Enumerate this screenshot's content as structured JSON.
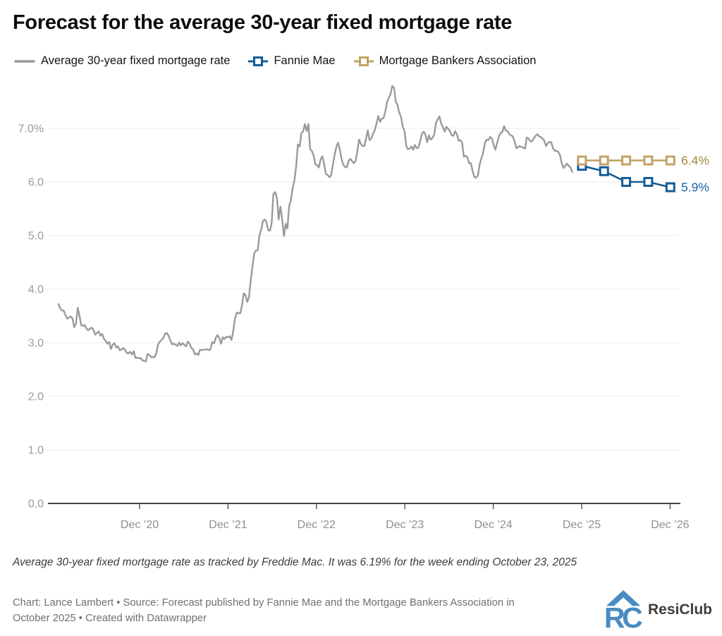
{
  "title": "Forecast for the average 30-year fixed mortgage rate",
  "legend": {
    "items": [
      {
        "label": "Average 30-year fixed mortgage rate",
        "color": "#9a9a9a",
        "swatch": "line"
      },
      {
        "label": "Fannie Mae",
        "color": "#155c96",
        "swatch": "square"
      },
      {
        "label": "Mortgage Bankers Association",
        "color": "#c3a265",
        "swatch": "square"
      }
    ]
  },
  "chart_data": {
    "type": "line",
    "title": "Forecast for the average 30-year fixed mortgage rate",
    "xlabel": "",
    "ylabel": "",
    "ylim": [
      0,
      7.9
    ],
    "grid": true,
    "y_ticks": [
      {
        "value": 7,
        "label": "7.0%"
      },
      {
        "value": 6,
        "label": "6.0"
      },
      {
        "value": 5,
        "label": "5.0"
      },
      {
        "value": 4,
        "label": "4.0"
      },
      {
        "value": 3,
        "label": "3.0"
      },
      {
        "value": 2,
        "label": "2.0"
      },
      {
        "value": 1,
        "label": "1.0"
      },
      {
        "value": 0,
        "label": "0.0"
      }
    ],
    "x_ticks": [
      {
        "t": 2020.917,
        "label": "Dec ’20"
      },
      {
        "t": 2021.917,
        "label": "Dec ’21"
      },
      {
        "t": 2022.917,
        "label": "Dec ’22"
      },
      {
        "t": 2023.917,
        "label": "Dec ’23"
      },
      {
        "t": 2024.917,
        "label": "Dec ’24"
      },
      {
        "t": 2025.917,
        "label": "Dec ’25"
      },
      {
        "t": 2026.917,
        "label": "Dec ’26"
      }
    ],
    "series": [
      {
        "name": "Average 30-year fixed mortgage rate",
        "color": "#9a9a9a",
        "x_start": 2020.0,
        "x_end": 2025.81,
        "values": [
          3.72,
          3.64,
          3.6,
          3.6,
          3.51,
          3.45,
          3.47,
          3.49,
          3.45,
          3.29,
          3.36,
          3.65,
          3.5,
          3.33,
          3.31,
          3.33,
          3.26,
          3.23,
          3.26,
          3.28,
          3.24,
          3.15,
          3.18,
          3.21,
          3.13,
          3.16,
          3.07,
          3.03,
          2.98,
          3.01,
          2.88,
          2.96,
          2.99,
          2.91,
          2.93,
          2.86,
          2.87,
          2.9,
          2.87,
          2.81,
          2.8,
          2.83,
          2.78,
          2.84,
          2.72,
          2.72,
          2.71,
          2.71,
          2.67,
          2.66,
          2.65,
          2.79,
          2.77,
          2.73,
          2.73,
          2.73,
          2.81,
          2.97,
          3.02,
          3.05,
          3.09,
          3.17,
          3.18,
          3.13,
          3.04,
          2.97,
          2.98,
          2.96,
          2.94,
          3.0,
          2.95,
          2.99,
          2.96,
          2.93,
          3.02,
          2.98,
          2.9,
          2.88,
          2.78,
          2.8,
          2.77,
          2.87,
          2.86,
          2.87,
          2.87,
          2.88,
          2.86,
          2.88,
          3.01,
          2.99,
          3.09,
          3.14,
          3.09,
          2.98,
          3.1,
          3.07,
          3.11,
          3.1,
          3.12,
          3.05,
          3.22,
          3.45,
          3.56,
          3.55,
          3.55,
          3.69,
          3.92,
          3.89,
          3.76,
          3.85,
          4.16,
          4.42,
          4.67,
          4.72,
          4.72,
          5.0,
          5.11,
          5.27,
          5.3,
          5.25,
          5.1,
          5.09,
          5.23,
          5.78,
          5.81,
          5.7,
          5.3,
          5.54,
          5.3,
          4.99,
          5.22,
          5.13,
          5.55,
          5.66,
          5.89,
          6.02,
          6.29,
          6.7,
          6.66,
          6.92,
          6.94,
          7.08,
          6.95,
          7.08,
          6.61,
          6.58,
          6.49,
          6.33,
          6.31,
          6.27,
          6.42,
          6.48,
          6.33,
          6.15,
          6.13,
          6.09,
          6.12,
          6.32,
          6.5,
          6.65,
          6.73,
          6.6,
          6.42,
          6.32,
          6.28,
          6.27,
          6.39,
          6.43,
          6.39,
          6.35,
          6.39,
          6.57,
          6.79,
          6.71,
          6.67,
          6.67,
          6.81,
          6.96,
          6.78,
          6.81,
          6.9,
          6.96,
          7.09,
          7.23,
          7.12,
          7.18,
          7.19,
          7.31,
          7.49,
          7.57,
          7.63,
          7.79,
          7.76,
          7.5,
          7.44,
          7.29,
          7.22,
          7.03,
          6.95,
          6.67,
          6.61,
          6.62,
          6.66,
          6.6,
          6.69,
          6.63,
          6.64,
          6.77,
          6.9,
          6.94,
          6.88,
          6.74,
          6.87,
          6.79,
          6.82,
          6.88,
          7.1,
          7.17,
          7.22,
          7.09,
          7.02,
          6.94,
          7.03,
          6.99,
          6.95,
          6.87,
          6.86,
          6.95,
          6.89,
          6.77,
          6.78,
          6.73,
          6.47,
          6.49,
          6.46,
          6.35,
          6.35,
          6.2,
          6.09,
          6.08,
          6.12,
          6.32,
          6.44,
          6.54,
          6.72,
          6.79,
          6.78,
          6.84,
          6.81,
          6.69,
          6.6,
          6.72,
          6.85,
          6.91,
          6.93,
          7.04,
          6.96,
          6.95,
          6.89,
          6.87,
          6.85,
          6.76,
          6.63,
          6.65,
          6.67,
          6.65,
          6.64,
          6.62,
          6.83,
          6.81,
          6.76,
          6.76,
          6.81,
          6.86,
          6.89,
          6.85,
          6.84,
          6.81,
          6.77,
          6.67,
          6.72,
          6.75,
          6.74,
          6.63,
          6.58,
          6.58,
          6.56,
          6.5,
          6.35,
          6.26,
          6.3,
          6.34,
          6.3,
          6.27,
          6.19
        ]
      },
      {
        "name": "Fannie Mae",
        "color": "#155c96",
        "x": [
          2025.92,
          2026.17,
          2026.42,
          2026.67,
          2026.92
        ],
        "values": [
          6.3,
          6.2,
          6.0,
          6.0,
          5.9
        ],
        "end_label": "5.9%",
        "end_label_color": "#2165a5"
      },
      {
        "name": "Mortgage Bankers Association",
        "color": "#c3a265",
        "x": [
          2025.92,
          2026.17,
          2026.42,
          2026.67,
          2026.92
        ],
        "values": [
          6.4,
          6.4,
          6.4,
          6.4,
          6.4
        ],
        "end_label": "6.4%",
        "end_label_color": "#a1873f"
      }
    ]
  },
  "footnote": "Average 30-year fixed mortgage rate as tracked by Freddie Mac. It was 6.19% for the week ending October 23, 2025",
  "credits": "Chart: Lance Lambert • Source: Forecast published by Fannie Mae and the Mortgage Bankers Association in October 2025 • Created with Datawrapper",
  "logo": {
    "text": "ResiClub",
    "color": "#4a8bc2"
  }
}
